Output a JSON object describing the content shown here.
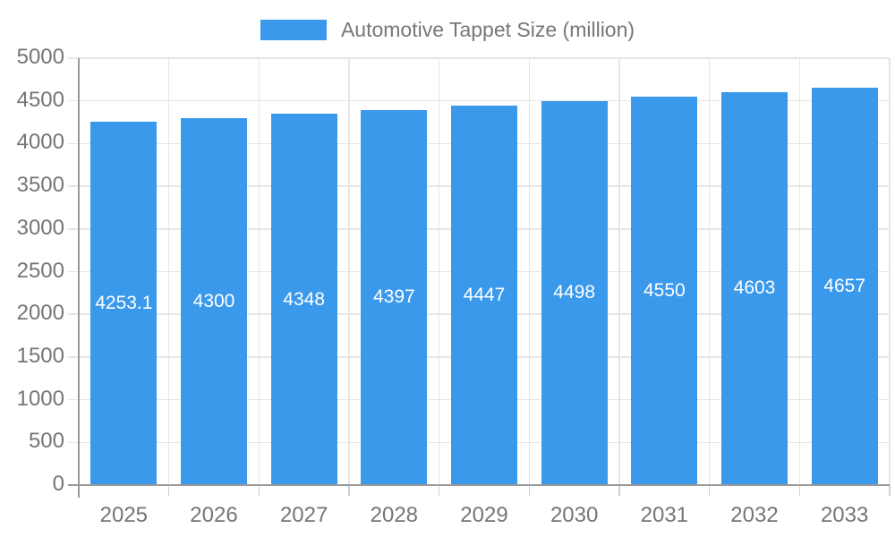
{
  "legend": {
    "label": "Automotive Tappet Size (million)"
  },
  "chart_data": {
    "type": "bar",
    "title": "Automotive Tappet Size (million)",
    "categories": [
      "2025",
      "2026",
      "2027",
      "2028",
      "2029",
      "2030",
      "2031",
      "2032",
      "2033"
    ],
    "values": [
      4253.1,
      4300,
      4348,
      4397,
      4447,
      4498,
      4550,
      4603,
      4657
    ],
    "bar_labels": [
      "4253.1",
      "4300",
      "4348",
      "4397",
      "4447",
      "4498",
      "4550",
      "4603",
      "4657"
    ],
    "xlabel": "",
    "ylabel": "",
    "ylim": [
      0,
      5000
    ],
    "ytick_step": 500,
    "ytick_labels": [
      "0",
      "500",
      "1000",
      "1500",
      "2000",
      "2500",
      "3000",
      "3500",
      "4000",
      "4500",
      "5000"
    ],
    "grid": true,
    "legend_position": "top",
    "colors": {
      "bar": "#3B99EC",
      "bar_label_text": "#FFFFFF",
      "axis_line": "#9A9A9A",
      "gridline": "#E6E6E6",
      "tick": "#CFCFCF",
      "label_text": "#757575",
      "legend_text": "#777777",
      "background": "#FFFFFF"
    }
  }
}
